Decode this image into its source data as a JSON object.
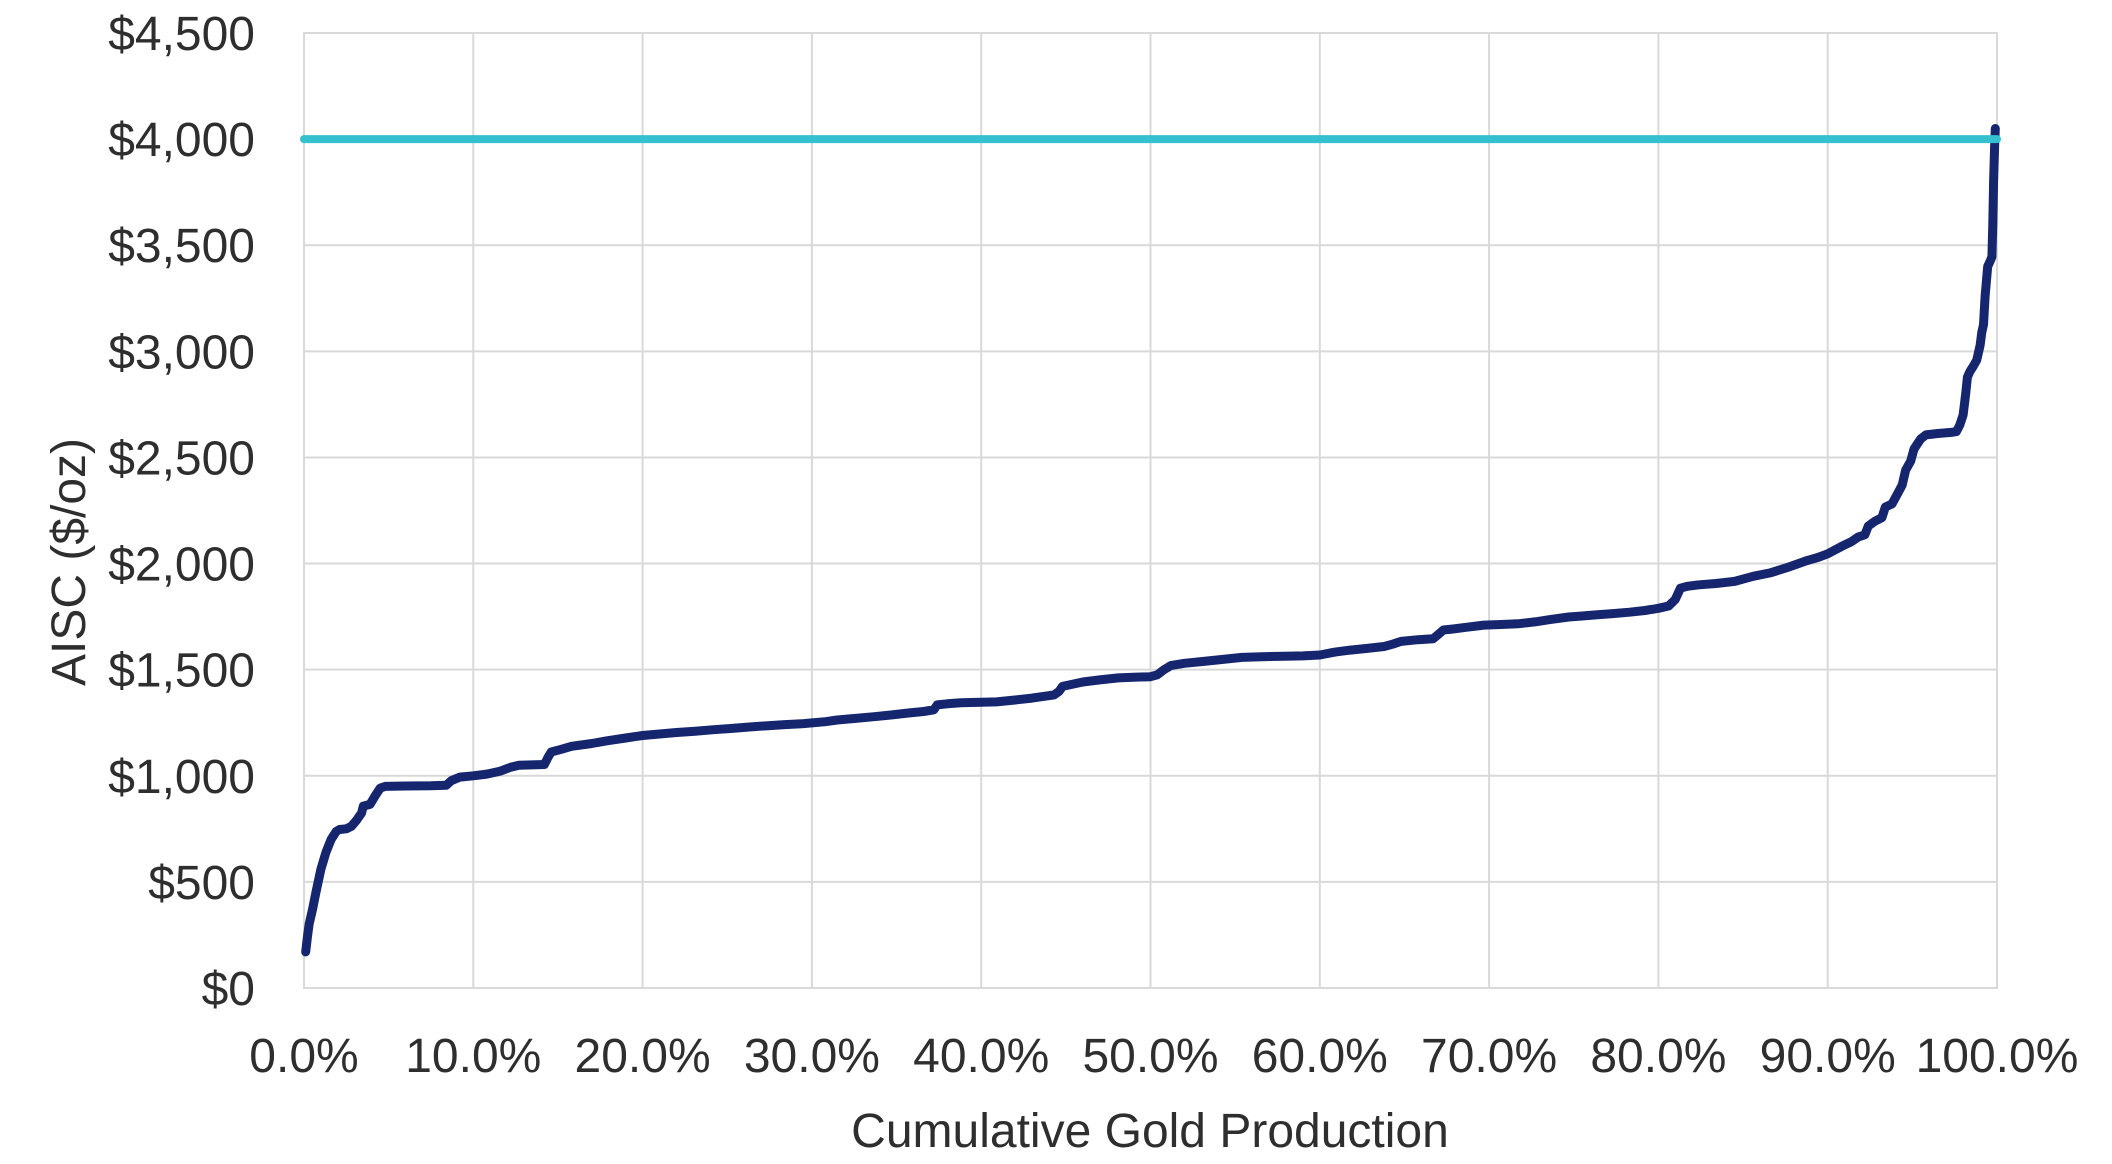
{
  "chart_data": {
    "type": "line",
    "title": "",
    "xlabel": "Cumulative Gold Production",
    "ylabel": "AISC ($/oz)",
    "grid": true,
    "legend_position": "none",
    "x_axis": {
      "min": 0,
      "max": 100,
      "tick_step": 10,
      "tick_values": [
        0,
        10,
        20,
        30,
        40,
        50,
        60,
        70,
        80,
        90,
        100
      ],
      "tick_labels": [
        "0.0%",
        "10.0%",
        "20.0%",
        "30.0%",
        "40.0%",
        "50.0%",
        "60.0%",
        "70.0%",
        "80.0%",
        "90.0%",
        "100.0%"
      ]
    },
    "y_axis": {
      "min": 0,
      "max": 4500,
      "tick_step": 500,
      "tick_values": [
        0,
        500,
        1000,
        1500,
        2000,
        2500,
        3000,
        3500,
        4000,
        4500
      ],
      "tick_labels": [
        "$0",
        "$500",
        "$1,000",
        "$1,500",
        "$2,000",
        "$2,500",
        "$3,000",
        "$3,500",
        "$4,000",
        "$4,500"
      ]
    },
    "series": [
      {
        "name": "gold-aisc-cost-curve",
        "type": "line",
        "color": "#16266e",
        "stroke_width": 9,
        "points": [
          [
            0.1,
            170
          ],
          [
            0.2,
            240
          ],
          [
            0.3,
            300
          ],
          [
            0.5,
            370
          ],
          [
            0.7,
            450
          ],
          [
            1.0,
            560
          ],
          [
            1.3,
            640
          ],
          [
            1.6,
            700
          ],
          [
            1.9,
            738
          ],
          [
            2.1,
            747
          ],
          [
            2.5,
            750
          ],
          [
            2.8,
            762
          ],
          [
            3.1,
            790
          ],
          [
            3.4,
            825
          ],
          [
            3.5,
            857
          ],
          [
            3.9,
            865
          ],
          [
            4.2,
            905
          ],
          [
            4.5,
            942
          ],
          [
            4.8,
            950
          ],
          [
            6.0,
            952
          ],
          [
            7.5,
            953
          ],
          [
            8.4,
            955
          ],
          [
            8.7,
            977
          ],
          [
            9.2,
            994
          ],
          [
            10.0,
            1000
          ],
          [
            10.8,
            1008
          ],
          [
            11.6,
            1022
          ],
          [
            12.2,
            1040
          ],
          [
            12.7,
            1050
          ],
          [
            14.2,
            1053
          ],
          [
            14.4,
            1085
          ],
          [
            14.6,
            1112
          ],
          [
            15.2,
            1125
          ],
          [
            15.8,
            1139
          ],
          [
            17.0,
            1152
          ],
          [
            17.9,
            1165
          ],
          [
            19.0,
            1178
          ],
          [
            20.0,
            1190
          ],
          [
            21.0,
            1197
          ],
          [
            22.0,
            1204
          ],
          [
            23.1,
            1210
          ],
          [
            24.2,
            1217
          ],
          [
            25.2,
            1223
          ],
          [
            26.3,
            1230
          ],
          [
            27.4,
            1236
          ],
          [
            28.4,
            1241
          ],
          [
            29.4,
            1245
          ],
          [
            30.0,
            1249
          ],
          [
            30.8,
            1255
          ],
          [
            31.5,
            1263
          ],
          [
            32.5,
            1270
          ],
          [
            33.6,
            1278
          ],
          [
            34.6,
            1286
          ],
          [
            35.7,
            1296
          ],
          [
            36.6,
            1303
          ],
          [
            37.2,
            1311
          ],
          [
            37.4,
            1334
          ],
          [
            38.0,
            1339
          ],
          [
            38.8,
            1344
          ],
          [
            40.0,
            1346
          ],
          [
            40.9,
            1348
          ],
          [
            42.0,
            1357
          ],
          [
            43.0,
            1366
          ],
          [
            44.3,
            1381
          ],
          [
            44.6,
            1398
          ],
          [
            44.8,
            1421
          ],
          [
            46.0,
            1442
          ],
          [
            47.0,
            1452
          ],
          [
            48.1,
            1461
          ],
          [
            49.0,
            1464
          ],
          [
            50.0,
            1467
          ],
          [
            50.4,
            1476
          ],
          [
            50.8,
            1500
          ],
          [
            51.2,
            1519
          ],
          [
            52.0,
            1530
          ],
          [
            53.0,
            1538
          ],
          [
            54.0,
            1546
          ],
          [
            55.4,
            1558
          ],
          [
            56.6,
            1561
          ],
          [
            57.9,
            1563
          ],
          [
            59.0,
            1565
          ],
          [
            60.0,
            1569
          ],
          [
            60.9,
            1583
          ],
          [
            61.8,
            1592
          ],
          [
            62.8,
            1600
          ],
          [
            63.8,
            1609
          ],
          [
            64.3,
            1620
          ],
          [
            64.8,
            1633
          ],
          [
            65.8,
            1641
          ],
          [
            66.7,
            1646
          ],
          [
            67.0,
            1666
          ],
          [
            67.3,
            1687
          ],
          [
            67.8,
            1691
          ],
          [
            68.7,
            1700
          ],
          [
            69.7,
            1710
          ],
          [
            70.7,
            1713
          ],
          [
            71.7,
            1716
          ],
          [
            72.7,
            1725
          ],
          [
            73.6,
            1736
          ],
          [
            74.7,
            1748
          ],
          [
            75.5,
            1753
          ],
          [
            76.3,
            1758
          ],
          [
            77.3,
            1764
          ],
          [
            78.3,
            1771
          ],
          [
            79.2,
            1779
          ],
          [
            80.0,
            1789
          ],
          [
            80.6,
            1800
          ],
          [
            81.0,
            1831
          ],
          [
            81.3,
            1884
          ],
          [
            81.7,
            1893
          ],
          [
            82.4,
            1900
          ],
          [
            83.4,
            1906
          ],
          [
            84.5,
            1916
          ],
          [
            85.6,
            1940
          ],
          [
            86.6,
            1956
          ],
          [
            87.6,
            1981
          ],
          [
            88.7,
            2012
          ],
          [
            89.4,
            2028
          ],
          [
            90.0,
            2046
          ],
          [
            90.8,
            2080
          ],
          [
            91.4,
            2103
          ],
          [
            91.8,
            2125
          ],
          [
            92.2,
            2136
          ],
          [
            92.4,
            2177
          ],
          [
            92.8,
            2200
          ],
          [
            93.2,
            2216
          ],
          [
            93.4,
            2266
          ],
          [
            93.8,
            2281
          ],
          [
            94.1,
            2325
          ],
          [
            94.4,
            2370
          ],
          [
            94.6,
            2440
          ],
          [
            94.9,
            2483
          ],
          [
            95.1,
            2540
          ],
          [
            95.3,
            2564
          ],
          [
            95.5,
            2588
          ],
          [
            95.8,
            2606
          ],
          [
            96.5,
            2613
          ],
          [
            97.3,
            2618
          ],
          [
            97.6,
            2622
          ],
          [
            97.8,
            2653
          ],
          [
            98.0,
            2700
          ],
          [
            98.15,
            2800
          ],
          [
            98.25,
            2878
          ],
          [
            98.4,
            2905
          ],
          [
            98.6,
            2930
          ],
          [
            98.8,
            2958
          ],
          [
            99.0,
            3028
          ],
          [
            99.1,
            3090
          ],
          [
            99.2,
            3125
          ],
          [
            99.3,
            3260
          ],
          [
            99.45,
            3400
          ],
          [
            99.6,
            3425
          ],
          [
            99.7,
            3445
          ],
          [
            99.75,
            3600
          ],
          [
            99.8,
            3800
          ],
          [
            99.85,
            3950
          ],
          [
            99.9,
            4050
          ]
        ]
      },
      {
        "name": "gold-price-reference-line",
        "type": "horizontal-line",
        "color": "#35c0cf",
        "stroke_width": 8,
        "value": 4000,
        "x_range": [
          0,
          100
        ]
      }
    ]
  },
  "colors": {
    "curve_navy": "#16266e",
    "reference_teal": "#35c0cf",
    "gridline_gray": "#d9d9d9",
    "text_dark": "#2e2e2e",
    "background": "#ffffff"
  }
}
